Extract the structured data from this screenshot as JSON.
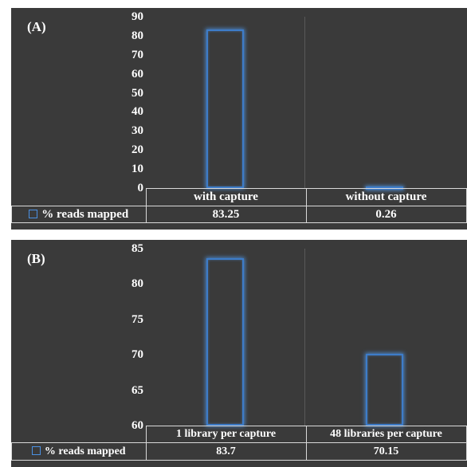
{
  "chart_data": [
    {
      "type": "bar",
      "panel_label": "(A)",
      "categories": [
        "with capture",
        "without capture"
      ],
      "series": [
        {
          "name": "% reads mapped",
          "values": [
            83.25,
            0.26
          ]
        }
      ],
      "ylim": [
        0,
        90
      ],
      "yticks": [
        "90",
        "80",
        "70",
        "60",
        "50",
        "40",
        "30",
        "20",
        "10",
        "0"
      ],
      "table_values": [
        "83.25",
        "0.26"
      ],
      "data_table": true,
      "bar_color": "#3d7cc9"
    },
    {
      "type": "bar",
      "panel_label": "(B)",
      "categories": [
        "1 library per capture",
        "48 libraries per capture"
      ],
      "series": [
        {
          "name": "% reads mapped",
          "values": [
            83.7,
            70.15
          ]
        }
      ],
      "ylim": [
        60,
        85
      ],
      "yticks": [
        "85",
        "80",
        "75",
        "70",
        "65",
        "60"
      ],
      "table_values": [
        "83.7",
        "70.15"
      ],
      "data_table": true,
      "bar_color": "#3d7cc9"
    }
  ]
}
